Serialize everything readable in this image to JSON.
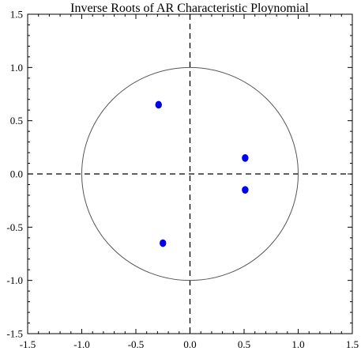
{
  "chart_data": {
    "type": "scatter",
    "title": "Inverse Roots of AR Characteristic Ploynomial",
    "xlabel": "",
    "ylabel": "",
    "xlim": [
      -1.5,
      1.5
    ],
    "ylim": [
      -1.5,
      1.5
    ],
    "x_ticks": [
      -1.5,
      -1.0,
      -0.5,
      0.0,
      0.5,
      1.0,
      1.5
    ],
    "y_ticks": [
      -1.5,
      -1.0,
      -0.5,
      0.0,
      0.5,
      1.0,
      1.5
    ],
    "x_tick_labels": [
      "-1.5",
      "-1.0",
      "-0.5",
      "0.0",
      "0.5",
      "1.0",
      "1.5"
    ],
    "y_tick_labels": [
      "-1.5",
      "-1.0",
      "-0.5",
      "0.0",
      "0.5",
      "1.0",
      "1.5"
    ],
    "unit_circle_radius": 1.0,
    "zero_lines": true,
    "grid": false,
    "marker_color": "#0000ee",
    "line_color": "#000000",
    "circle_color": "#555555",
    "points": [
      {
        "x": -0.29,
        "y": 0.65
      },
      {
        "x": 0.51,
        "y": 0.15
      },
      {
        "x": 0.51,
        "y": -0.15
      },
      {
        "x": -0.25,
        "y": -0.65
      }
    ]
  }
}
